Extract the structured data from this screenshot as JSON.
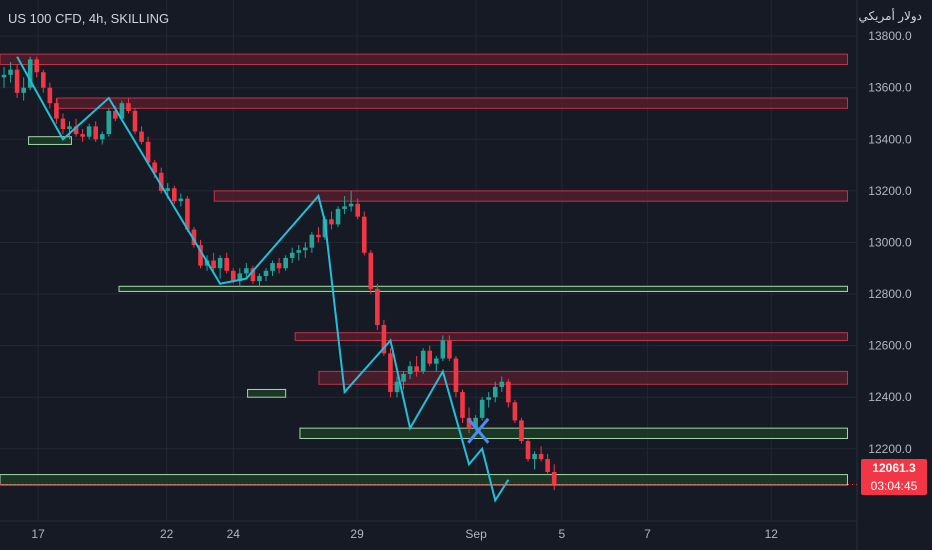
{
  "header": {
    "symbol_label": "US 100 CFD, 4h, SKILLING",
    "currency_label": "دولار أمريكي"
  },
  "price_axis": {
    "last_price": "12061.3",
    "countdown": "03:04:45"
  },
  "colors": {
    "background": "#161a25",
    "grid": "#232734",
    "axis_text": "#b2b5be",
    "up": "#26a69a",
    "down": "#f23645",
    "zigzag": "#22c0d8",
    "resistance_fill": "#5a1f2d",
    "resistance_border": "#c1334a",
    "support_fill": "#1e3d26",
    "support_border": "#a6d8a9",
    "cross": "#4a8cf0"
  },
  "chart_data": {
    "type": "candlestick",
    "title": "US 100 CFD, 4h, SKILLING",
    "y_ticks": [
      13800,
      13600,
      13400,
      13200,
      13000,
      12800,
      12600,
      12400,
      12200
    ],
    "ylim": [
      11920,
      13940
    ],
    "x_ticks": [
      "17",
      "22",
      "24",
      "29",
      "Sep",
      "5",
      "7",
      "12"
    ],
    "x_tick_index": [
      8,
      35,
      49,
      75,
      100,
      118,
      136,
      162
    ],
    "xlim": [
      0,
      180
    ],
    "last_price": 12061.3,
    "candles": [
      [
        13640,
        13680,
        13600,
        13650
      ],
      [
        13650,
        13700,
        13620,
        13670
      ],
      [
        13670,
        13690,
        13560,
        13580
      ],
      [
        13580,
        13640,
        13550,
        13600
      ],
      [
        13600,
        13720,
        13590,
        13710
      ],
      [
        13710,
        13720,
        13640,
        13660
      ],
      [
        13660,
        13670,
        13580,
        13600
      ],
      [
        13600,
        13620,
        13520,
        13540
      ],
      [
        13540,
        13560,
        13460,
        13480
      ],
      [
        13480,
        13500,
        13420,
        13440
      ],
      [
        13440,
        13470,
        13400,
        13450
      ],
      [
        13450,
        13480,
        13410,
        13420
      ],
      [
        13420,
        13440,
        13390,
        13410
      ],
      [
        13410,
        13460,
        13400,
        13450
      ],
      [
        13450,
        13470,
        13390,
        13400
      ],
      [
        13400,
        13430,
        13380,
        13420
      ],
      [
        13420,
        13520,
        13410,
        13510
      ],
      [
        13510,
        13530,
        13470,
        13480
      ],
      [
        13480,
        13550,
        13470,
        13540
      ],
      [
        13540,
        13560,
        13500,
        13510
      ],
      [
        13510,
        13520,
        13420,
        13430
      ],
      [
        13430,
        13450,
        13380,
        13390
      ],
      [
        13390,
        13410,
        13300,
        13310
      ],
      [
        13310,
        13320,
        13250,
        13270
      ],
      [
        13270,
        13290,
        13190,
        13200
      ],
      [
        13200,
        13230,
        13170,
        13210
      ],
      [
        13210,
        13220,
        13150,
        13160
      ],
      [
        13160,
        13190,
        13140,
        13170
      ],
      [
        13170,
        13180,
        13040,
        13050
      ],
      [
        13050,
        13060,
        12980,
        12990
      ],
      [
        12990,
        13010,
        12900,
        12910
      ],
      [
        12910,
        12950,
        12890,
        12930
      ],
      [
        12930,
        12960,
        12880,
        12900
      ],
      [
        12900,
        12950,
        12860,
        12940
      ],
      [
        12940,
        12960,
        12880,
        12890
      ],
      [
        12890,
        12900,
        12840,
        12850
      ],
      [
        12850,
        12900,
        12830,
        12880
      ],
      [
        12880,
        12920,
        12860,
        12900
      ],
      [
        12900,
        12910,
        12840,
        12850
      ],
      [
        12850,
        12880,
        12830,
        12870
      ],
      [
        12870,
        12900,
        12850,
        12890
      ],
      [
        12890,
        12930,
        12870,
        12920
      ],
      [
        12920,
        12940,
        12880,
        12900
      ],
      [
        12900,
        12950,
        12890,
        12940
      ],
      [
        12940,
        12980,
        12920,
        12960
      ],
      [
        12960,
        12990,
        12930,
        12970
      ],
      [
        12970,
        13000,
        12940,
        12980
      ],
      [
        12980,
        13040,
        12960,
        13030
      ],
      [
        13030,
        13060,
        13000,
        13020
      ],
      [
        13020,
        13100,
        13010,
        13090
      ],
      [
        13090,
        13120,
        13050,
        13070
      ],
      [
        13070,
        13140,
        13060,
        13130
      ],
      [
        13130,
        13180,
        13110,
        13140
      ],
      [
        13140,
        13200,
        13120,
        13150
      ],
      [
        13150,
        13170,
        13090,
        13100
      ],
      [
        13100,
        13120,
        12950,
        12960
      ],
      [
        12960,
        12970,
        12800,
        12820
      ],
      [
        12820,
        12840,
        12660,
        12680
      ],
      [
        12680,
        12700,
        12560,
        12570
      ],
      [
        12570,
        12590,
        12400,
        12420
      ],
      [
        12420,
        12480,
        12400,
        12460
      ],
      [
        12460,
        12500,
        12430,
        12490
      ],
      [
        12490,
        12540,
        12470,
        12520
      ],
      [
        12520,
        12560,
        12480,
        12500
      ],
      [
        12500,
        12590,
        12490,
        12580
      ],
      [
        12580,
        12600,
        12520,
        12530
      ],
      [
        12530,
        12560,
        12500,
        12550
      ],
      [
        12550,
        12640,
        12540,
        12620
      ],
      [
        12620,
        12640,
        12540,
        12550
      ],
      [
        12550,
        12560,
        12400,
        12420
      ],
      [
        12420,
        12430,
        12300,
        12320
      ],
      [
        12320,
        12360,
        12260,
        12280
      ],
      [
        12280,
        12330,
        12270,
        12320
      ],
      [
        12320,
        12400,
        12310,
        12390
      ],
      [
        12390,
        12420,
        12360,
        12400
      ],
      [
        12400,
        12460,
        12380,
        12440
      ],
      [
        12440,
        12480,
        12420,
        12460
      ],
      [
        12460,
        12470,
        12360,
        12380
      ],
      [
        12380,
        12390,
        12300,
        12310
      ],
      [
        12310,
        12320,
        12220,
        12230
      ],
      [
        12230,
        12240,
        12150,
        12160
      ],
      [
        12160,
        12190,
        12120,
        12180
      ],
      [
        12180,
        12210,
        12150,
        12160
      ],
      [
        12160,
        12180,
        12100,
        12110
      ],
      [
        12110,
        12140,
        12040,
        12061.3
      ]
    ],
    "candle_start_index": 0,
    "zigzag": [
      [
        2,
        13720
      ],
      [
        9,
        13400
      ],
      [
        16,
        13560
      ],
      [
        33,
        12840
      ],
      [
        37,
        12860
      ],
      [
        48,
        13180
      ],
      [
        49,
        13080
      ],
      [
        52,
        12420
      ],
      [
        59,
        12620
      ],
      [
        62,
        12280
      ],
      [
        67,
        12500
      ],
      [
        71,
        12140
      ],
      [
        73,
        12200
      ],
      [
        75,
        12000
      ],
      [
        77,
        12080
      ]
    ],
    "resistance_zones": [
      {
        "x0": 0,
        "x1": 178,
        "y0": 13690,
        "y1": 13730
      },
      {
        "x0": 12,
        "x1": 178,
        "y0": 13520,
        "y1": 13560
      },
      {
        "x0": 45,
        "x1": 178,
        "y0": 13160,
        "y1": 13200
      },
      {
        "x0": 62,
        "x1": 178,
        "y0": 12620,
        "y1": 12650
      },
      {
        "x0": 67,
        "x1": 178,
        "y0": 12450,
        "y1": 12500
      }
    ],
    "support_zones": [
      {
        "x0": 6,
        "x1": 15,
        "y0": 13380,
        "y1": 13410
      },
      {
        "x0": 25,
        "x1": 178,
        "y0": 12810,
        "y1": 12830
      },
      {
        "x0": 52,
        "x1": 60,
        "y0": 12400,
        "y1": 12430
      },
      {
        "x0": 63,
        "x1": 178,
        "y0": 12240,
        "y1": 12280
      },
      {
        "x0": 0,
        "x1": 178,
        "y0": 12060,
        "y1": 12100
      }
    ],
    "cross_marker": {
      "x": 75,
      "y": 12270
    },
    "grid": true,
    "legend": "none"
  }
}
